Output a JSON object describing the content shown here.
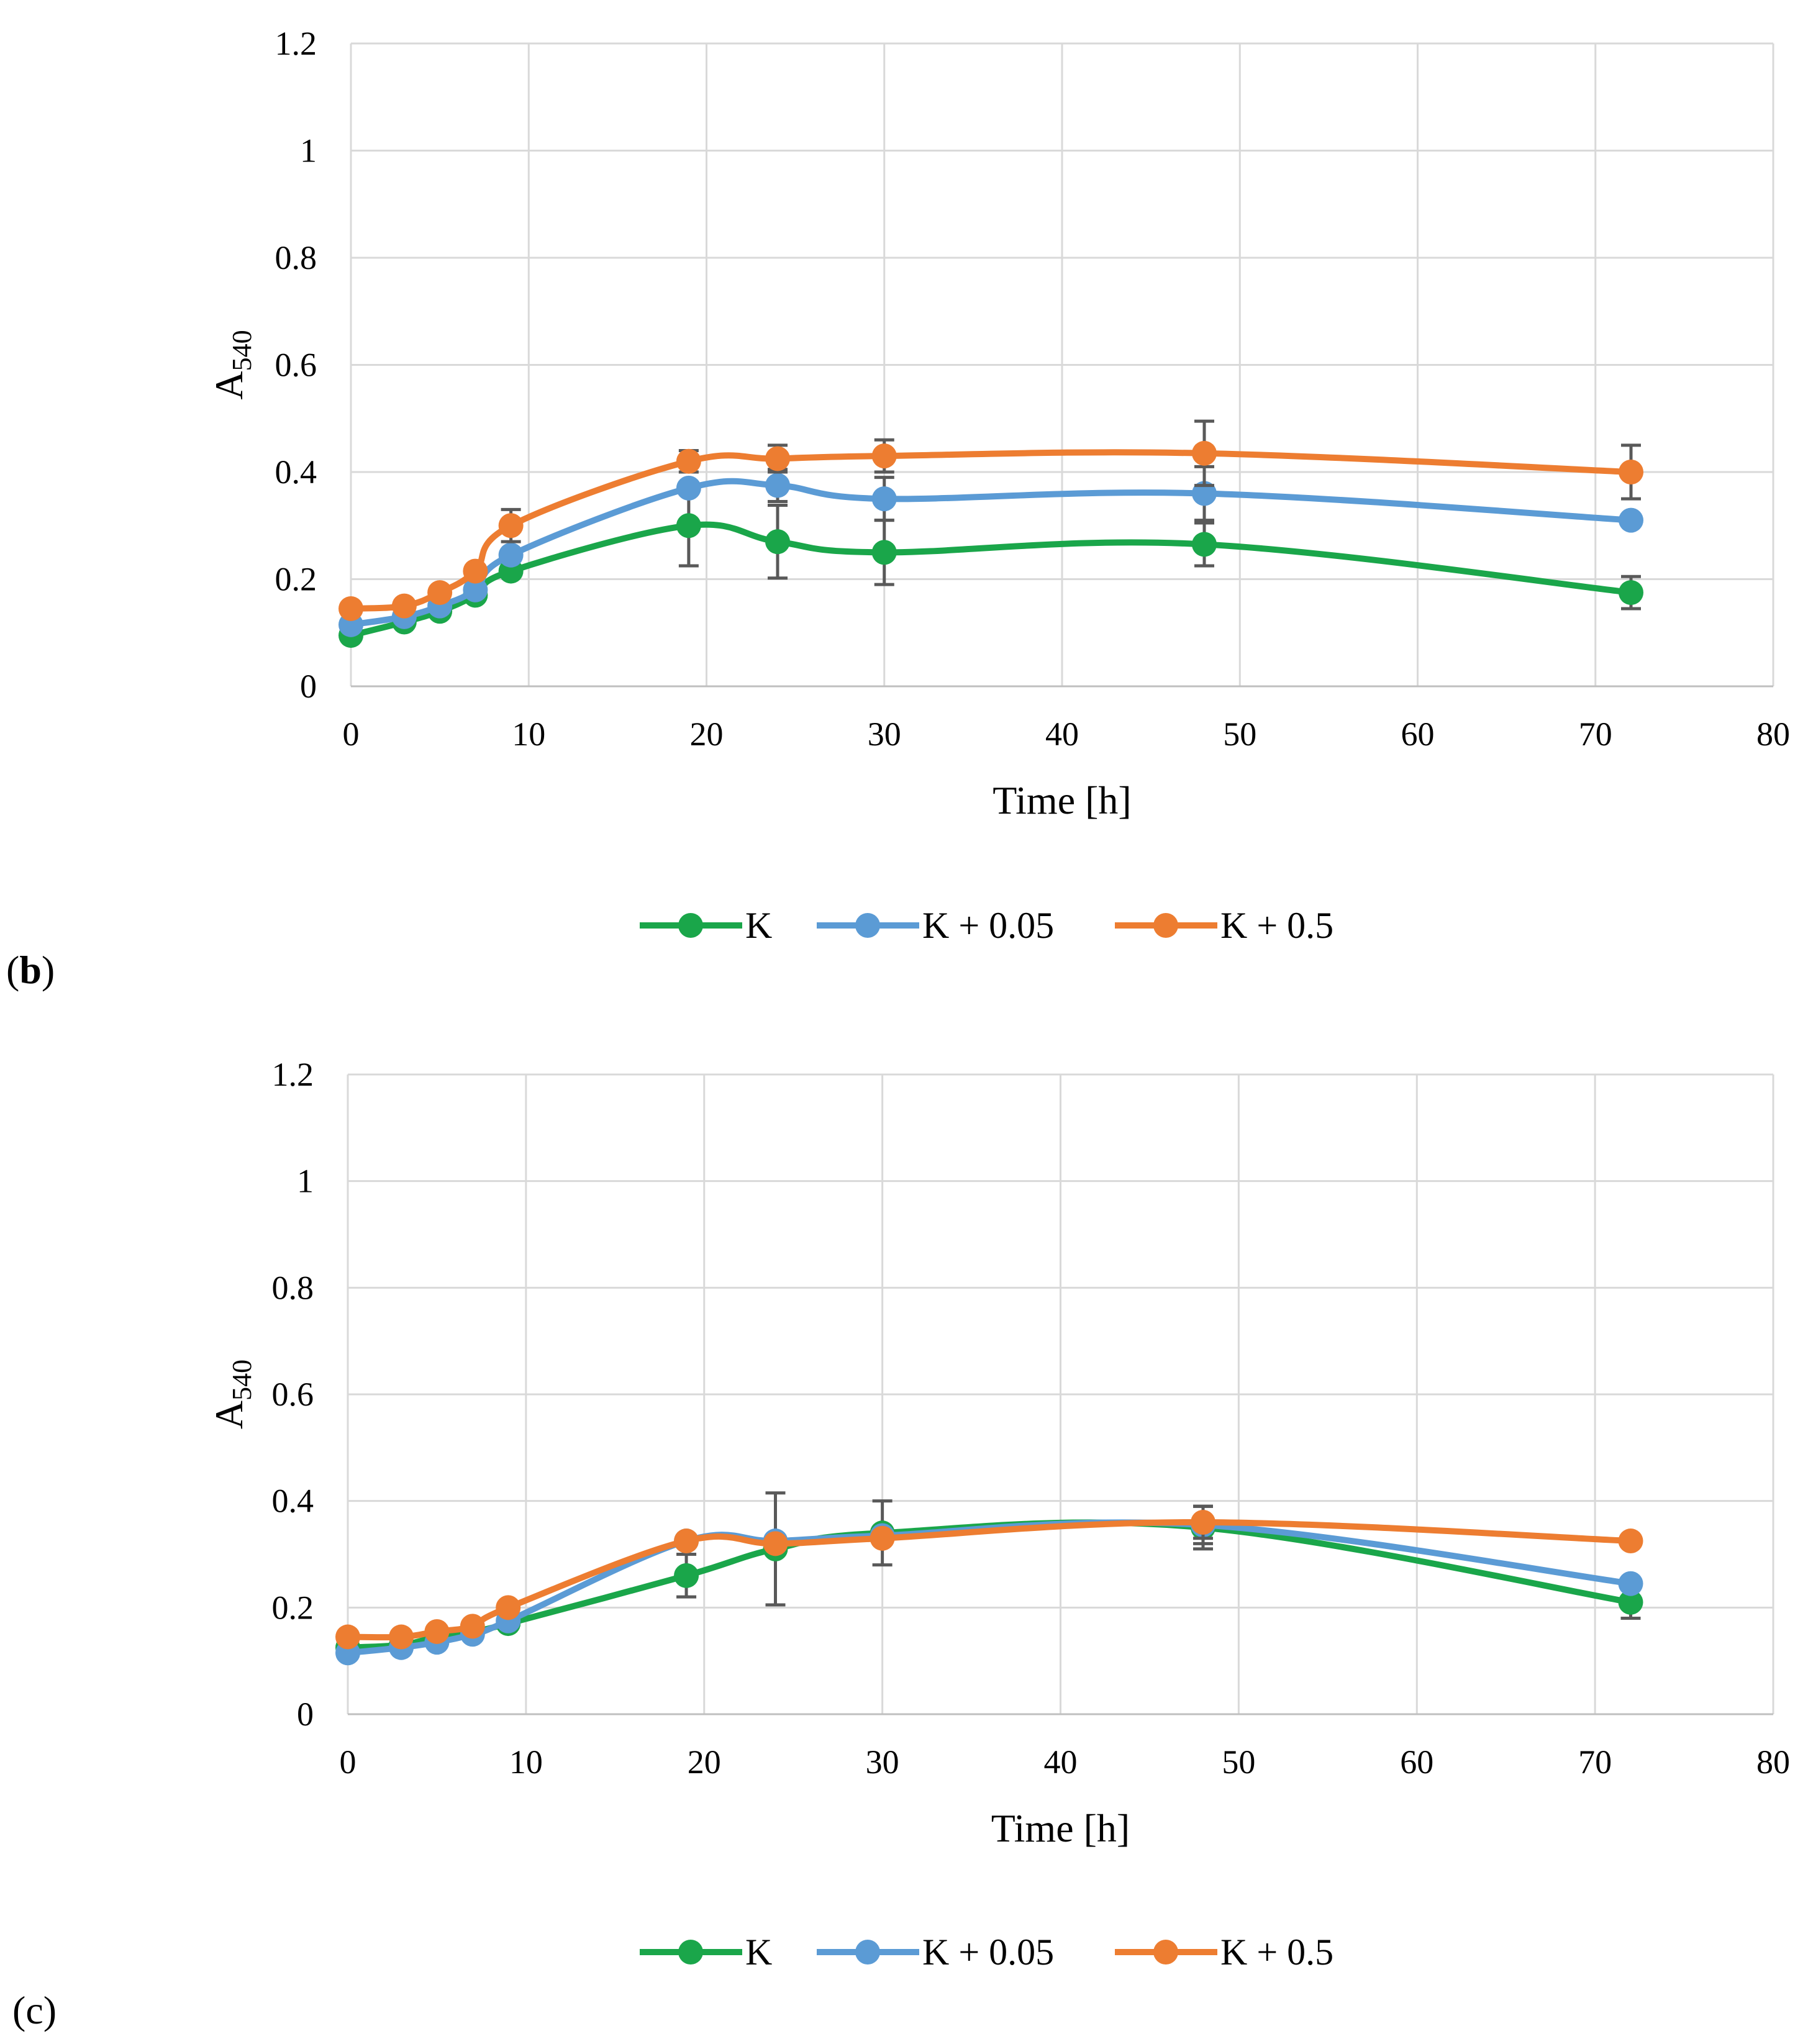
{
  "chart_data": [
    {
      "type": "line",
      "panel_label": "b",
      "xlabel": "Time [h]",
      "ylabel": {
        "main": "A",
        "sub": "540"
      },
      "xlim": [
        0,
        80
      ],
      "ylim": [
        0,
        1.2
      ],
      "x_ticks": [
        "0",
        "10",
        "20",
        "30",
        "40",
        "50",
        "60",
        "70",
        "80"
      ],
      "y_ticks": [
        "0",
        "0.2",
        "0.4",
        "0.6",
        "0.8",
        "1",
        "1.2"
      ],
      "grid": true,
      "legend_position": "bottom",
      "x": [
        0,
        3,
        5,
        7,
        9,
        19,
        24,
        30,
        48,
        72
      ],
      "series": [
        {
          "name": "K",
          "color": "#1aa64a",
          "values": [
            0.095,
            0.12,
            0.14,
            0.17,
            0.215,
            0.3,
            0.27,
            0.25,
            0.265,
            0.175
          ],
          "errors": [
            0,
            0,
            0,
            0,
            0,
            0.075,
            0.068,
            0.06,
            0.04,
            0.03
          ]
        },
        {
          "name": "K + 0.05",
          "color": "#5b9bd5",
          "values": [
            0.115,
            0.13,
            0.15,
            0.18,
            0.245,
            0.37,
            0.375,
            0.35,
            0.36,
            0.31
          ],
          "errors": [
            0,
            0,
            0,
            0,
            0,
            0,
            0.03,
            0.04,
            0.05,
            0
          ]
        },
        {
          "name": "K + 0.5",
          "color": "#ed7d31",
          "values": [
            0.145,
            0.15,
            0.175,
            0.215,
            0.3,
            0.42,
            0.425,
            0.43,
            0.435,
            0.4
          ],
          "errors": [
            0,
            0,
            0,
            0,
            0.03,
            0.02,
            0.025,
            0.03,
            0.06,
            0.05
          ]
        }
      ]
    },
    {
      "type": "line",
      "panel_label": "c",
      "xlabel": "Time [h]",
      "ylabel": {
        "main": "A",
        "sub": "540"
      },
      "xlim": [
        0,
        80
      ],
      "ylim": [
        0,
        1.2
      ],
      "x_ticks": [
        "0",
        "10",
        "20",
        "30",
        "40",
        "50",
        "60",
        "70",
        "80"
      ],
      "y_ticks": [
        "0",
        "0.2",
        "0.4",
        "0.6",
        "0.8",
        "1",
        "1.2"
      ],
      "grid": true,
      "legend_position": "bottom",
      "x": [
        0,
        3,
        5,
        7,
        9,
        19,
        24,
        30,
        48,
        72
      ],
      "series": [
        {
          "name": "K",
          "color": "#1aa64a",
          "values": [
            0.125,
            0.13,
            0.145,
            0.155,
            0.17,
            0.26,
            0.31,
            0.34,
            0.35,
            0.21
          ],
          "errors": [
            0,
            0,
            0,
            0,
            0,
            0.04,
            0.105,
            0.06,
            0.04,
            0.03
          ]
        },
        {
          "name": "K + 0.05",
          "color": "#5b9bd5",
          "values": [
            0.115,
            0.125,
            0.135,
            0.15,
            0.175,
            0.325,
            0.325,
            0.335,
            0.355,
            0.245
          ],
          "errors": [
            0,
            0,
            0,
            0,
            0,
            0,
            0,
            0,
            0.035,
            0
          ]
        },
        {
          "name": "K + 0.5",
          "color": "#ed7d31",
          "values": [
            0.145,
            0.145,
            0.155,
            0.165,
            0.2,
            0.325,
            0.32,
            0.33,
            0.36,
            0.325
          ],
          "errors": [
            0,
            0,
            0,
            0,
            0,
            0,
            0,
            0,
            0.03,
            0
          ]
        }
      ]
    }
  ]
}
